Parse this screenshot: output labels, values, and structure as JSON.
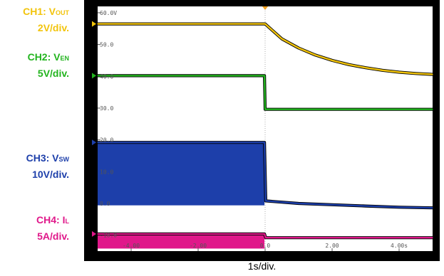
{
  "channels": [
    {
      "id": "ch1",
      "prefix": "CH1: V",
      "sub": "OUT",
      "scale": "2V/div.",
      "color": "#f2c40c"
    },
    {
      "id": "ch2",
      "prefix": "CH2: V",
      "sub": "EN",
      "scale": "5V/div.",
      "color": "#22b41e"
    },
    {
      "id": "ch3",
      "prefix": "CH3: V",
      "sub": "SW",
      "scale": "10V/div.",
      "color": "#1d3faa"
    },
    {
      "id": "ch4",
      "prefix": "CH4: I",
      "sub": "L",
      "scale": "5A/div.",
      "color": "#e0188a"
    }
  ],
  "timebase": "1s/div.",
  "chart_data": {
    "type": "line",
    "xlabel": "",
    "ylabel": "",
    "xlim": [
      -5,
      5
    ],
    "ylim": [
      -15,
      62
    ],
    "grid": false,
    "x_ticks": [
      "-4.00",
      "-2.00",
      "0.0",
      "2.00",
      "4.00s"
    ],
    "x_tick_values": [
      -4,
      -2,
      0,
      2,
      4
    ],
    "y_ticks": [
      "60.0V",
      "50.0",
      "40.0",
      "30.0",
      "20.0",
      "10.0",
      "0.0",
      "-10.0"
    ],
    "y_tick_values": [
      60,
      50,
      40,
      30,
      20,
      10,
      0,
      -10
    ],
    "trigger_time": 0,
    "series": [
      {
        "name": "CH1",
        "color": "#f2c40c",
        "x": [
          -5,
          -0.05,
          0,
          0.5,
          1,
          1.5,
          2,
          2.5,
          3,
          3.5,
          4,
          4.5,
          5
        ],
        "y": [
          56.5,
          56.5,
          56.5,
          51.8,
          48.9,
          46.7,
          45.0,
          43.7,
          42.7,
          41.9,
          41.3,
          40.9,
          40.6
        ]
      },
      {
        "name": "CH2",
        "color": "#22b41e",
        "x": [
          -5,
          -0.02,
          0,
          5
        ],
        "y": [
          40.2,
          40.2,
          29.6,
          29.6
        ]
      },
      {
        "name": "CH3",
        "color": "#1d3faa",
        "x": [
          -5,
          -0.02,
          0.02,
          0.5,
          1,
          2,
          3,
          4,
          5
        ],
        "y": [
          19.2,
          19.2,
          0.8,
          0.4,
          0.0,
          -0.4,
          -0.8,
          -1.2,
          -1.4
        ],
        "band_low": -0.6
      },
      {
        "name": "CH4",
        "color": "#e0188a",
        "x": [
          -5,
          -0.02,
          0.02,
          5
        ],
        "y": [
          -9.6,
          -9.6,
          -10.8,
          -10.8
        ],
        "band_low": -14.2
      }
    ]
  }
}
